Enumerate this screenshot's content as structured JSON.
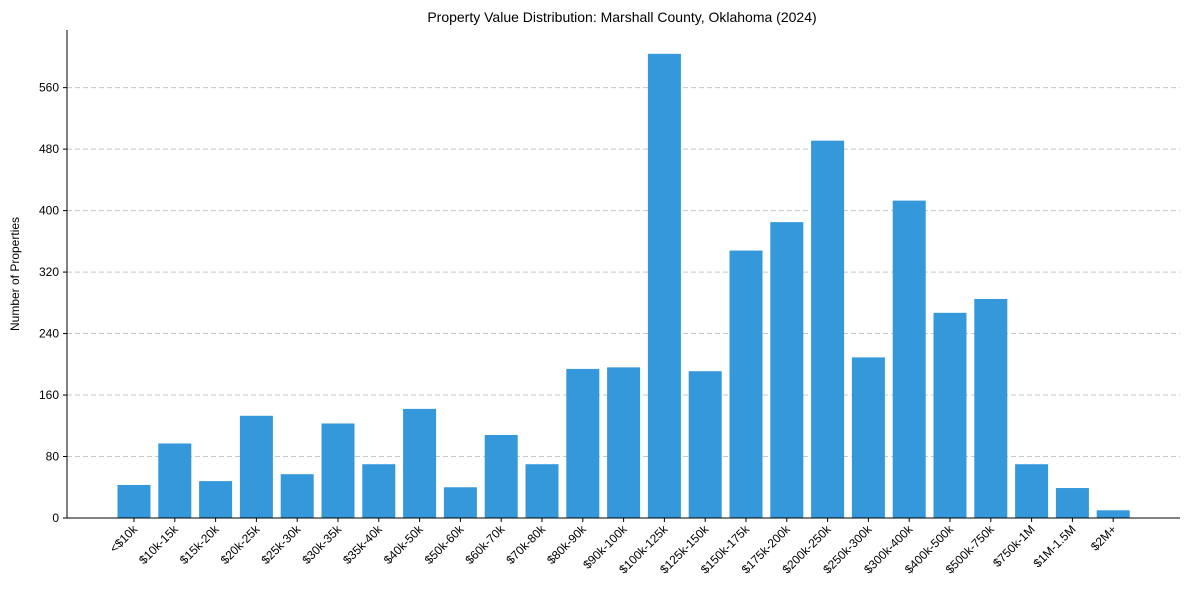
{
  "chart_data": {
    "type": "bar",
    "title": "Property Value Distribution: Marshall County, Oklahoma (2024)",
    "xlabel": "",
    "ylabel": "Number of Properties",
    "categories": [
      "<$10k",
      "$10k-15k",
      "$15k-20k",
      "$20k-25k",
      "$25k-30k",
      "$30k-35k",
      "$35k-40k",
      "$40k-50k",
      "$50k-60k",
      "$60k-70k",
      "$70k-80k",
      "$80k-90k",
      "$90k-100k",
      "$100k-125k",
      "$125k-150k",
      "$150k-175k",
      "$175k-200k",
      "$200k-250k",
      "$250k-300k",
      "$300k-400k",
      "$400k-500k",
      "$500k-750k",
      "$750k-1M",
      "$1M-1.5M",
      "$2M+"
    ],
    "values": [
      43,
      97,
      48,
      133,
      57,
      123,
      70,
      142,
      40,
      108,
      70,
      194,
      196,
      604,
      191,
      348,
      385,
      491,
      209,
      413,
      267,
      285,
      70,
      39,
      10
    ],
    "yticks": [
      0,
      80,
      160,
      240,
      320,
      400,
      480,
      560
    ],
    "ylim": [
      0,
      635
    ],
    "grid": "y-dashed",
    "color": "#3498db"
  }
}
